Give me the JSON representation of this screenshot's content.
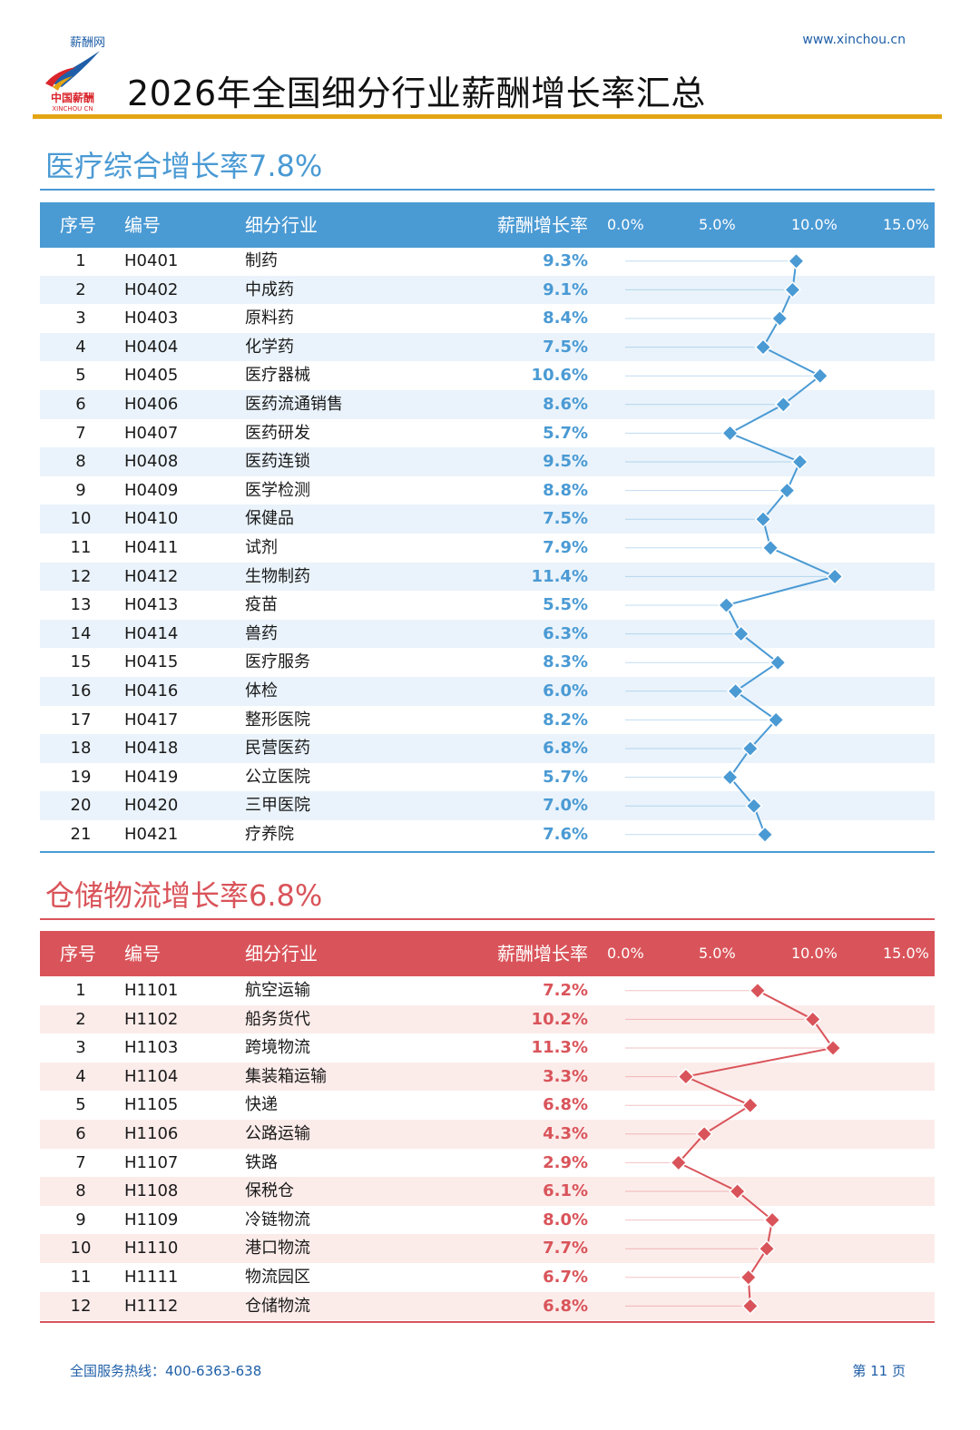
{
  "header": {
    "brand_small": "薪酬网",
    "site_url": "www.xinchou.cn",
    "logo_text_cn": "中国薪酬",
    "logo_text_en": "XINCHOU CN",
    "title": "2026年全国细分行业薪酬增长率汇总",
    "accent_color": "#e3a514"
  },
  "sections": [
    {
      "title": "医疗综合增长率7.8%",
      "color": "#4a9ad4",
      "row_alt_color": "#eaf3fb",
      "columns": [
        "序号",
        "编号",
        "细分行业",
        "薪酬增长率"
      ],
      "ticks": [
        "0.0%",
        "5.0%",
        "10.0%",
        "15.0%"
      ],
      "rows": [
        {
          "idx": "1",
          "code": "H0401",
          "name": "制药",
          "rate": "9.3%"
        },
        {
          "idx": "2",
          "code": "H0402",
          "name": "中成药",
          "rate": "9.1%"
        },
        {
          "idx": "3",
          "code": "H0403",
          "name": "原料药",
          "rate": "8.4%"
        },
        {
          "idx": "4",
          "code": "H0404",
          "name": "化学药",
          "rate": "7.5%"
        },
        {
          "idx": "5",
          "code": "H0405",
          "name": "医疗器械",
          "rate": "10.6%"
        },
        {
          "idx": "6",
          "code": "H0406",
          "name": "医药流通销售",
          "rate": "8.6%"
        },
        {
          "idx": "7",
          "code": "H0407",
          "name": "医药研发",
          "rate": "5.7%"
        },
        {
          "idx": "8",
          "code": "H0408",
          "name": "医药连锁",
          "rate": "9.5%"
        },
        {
          "idx": "9",
          "code": "H0409",
          "name": "医学检测",
          "rate": "8.8%"
        },
        {
          "idx": "10",
          "code": "H0410",
          "name": "保健品",
          "rate": "7.5%"
        },
        {
          "idx": "11",
          "code": "H0411",
          "name": "试剂",
          "rate": "7.9%"
        },
        {
          "idx": "12",
          "code": "H0412",
          "name": "生物制药",
          "rate": "11.4%"
        },
        {
          "idx": "13",
          "code": "H0413",
          "name": "疫苗",
          "rate": "5.5%"
        },
        {
          "idx": "14",
          "code": "H0414",
          "name": "兽药",
          "rate": "6.3%"
        },
        {
          "idx": "15",
          "code": "H0415",
          "name": "医疗服务",
          "rate": "8.3%"
        },
        {
          "idx": "16",
          "code": "H0416",
          "name": "体检",
          "rate": "6.0%"
        },
        {
          "idx": "17",
          "code": "H0417",
          "name": "整形医院",
          "rate": "8.2%"
        },
        {
          "idx": "18",
          "code": "H0418",
          "name": "民营医药",
          "rate": "6.8%"
        },
        {
          "idx": "19",
          "code": "H0419",
          "name": "公立医院",
          "rate": "5.7%"
        },
        {
          "idx": "20",
          "code": "H0420",
          "name": "三甲医院",
          "rate": "7.0%"
        },
        {
          "idx": "21",
          "code": "H0421",
          "name": "疗养院",
          "rate": "7.6%"
        }
      ]
    },
    {
      "title": "仓储物流增长率6.8%",
      "color": "#d9545a",
      "row_alt_color": "#fbecea",
      "columns": [
        "序号",
        "编号",
        "细分行业",
        "薪酬增长率"
      ],
      "ticks": [
        "0.0%",
        "5.0%",
        "10.0%",
        "15.0%"
      ],
      "rows": [
        {
          "idx": "1",
          "code": "H1101",
          "name": "航空运输",
          "rate": "7.2%"
        },
        {
          "idx": "2",
          "code": "H1102",
          "name": "船务货代",
          "rate": "10.2%"
        },
        {
          "idx": "3",
          "code": "H1103",
          "name": "跨境物流",
          "rate": "11.3%"
        },
        {
          "idx": "4",
          "code": "H1104",
          "name": "集装箱运输",
          "rate": "3.3%"
        },
        {
          "idx": "5",
          "code": "H1105",
          "name": "快递",
          "rate": "6.8%"
        },
        {
          "idx": "6",
          "code": "H1106",
          "name": "公路运输",
          "rate": "4.3%"
        },
        {
          "idx": "7",
          "code": "H1107",
          "name": "铁路",
          "rate": "2.9%"
        },
        {
          "idx": "8",
          "code": "H1108",
          "name": "保税仓",
          "rate": "6.1%"
        },
        {
          "idx": "9",
          "code": "H1109",
          "name": "冷链物流",
          "rate": "8.0%"
        },
        {
          "idx": "10",
          "code": "H1110",
          "name": "港口物流",
          "rate": "7.7%"
        },
        {
          "idx": "11",
          "code": "H1111",
          "name": "物流园区",
          "rate": "6.7%"
        },
        {
          "idx": "12",
          "code": "H1112",
          "name": "仓储物流",
          "rate": "6.8%"
        }
      ]
    }
  ],
  "chart_data": [
    {
      "type": "line",
      "x_axis_range": [
        0,
        15
      ],
      "orientation": "horizontal-values-per-row",
      "categories": [
        "制药",
        "中成药",
        "原料药",
        "化学药",
        "医疗器械",
        "医药流通销售",
        "医药研发",
        "医药连锁",
        "医学检测",
        "保健品",
        "试剂",
        "生物制药",
        "疫苗",
        "兽药",
        "医疗服务",
        "体检",
        "整形医院",
        "民营医药",
        "公立医院",
        "三甲医院",
        "疗养院"
      ],
      "values": [
        9.3,
        9.1,
        8.4,
        7.5,
        10.6,
        8.6,
        5.7,
        9.5,
        8.8,
        7.5,
        7.9,
        11.4,
        5.5,
        6.3,
        8.3,
        6.0,
        8.2,
        6.8,
        5.7,
        7.0,
        7.6
      ],
      "tick_labels": [
        "0.0%",
        "5.0%",
        "10.0%",
        "15.0%"
      ]
    },
    {
      "type": "line",
      "x_axis_range": [
        0,
        15
      ],
      "orientation": "horizontal-values-per-row",
      "categories": [
        "航空运输",
        "船务货代",
        "跨境物流",
        "集装箱运输",
        "快递",
        "公路运输",
        "铁路",
        "保税仓",
        "冷链物流",
        "港口物流",
        "物流园区",
        "仓储物流"
      ],
      "values": [
        7.2,
        10.2,
        11.3,
        3.3,
        6.8,
        4.3,
        2.9,
        6.1,
        8.0,
        7.7,
        6.7,
        6.8
      ],
      "tick_labels": [
        "0.0%",
        "5.0%",
        "10.0%",
        "15.0%"
      ]
    }
  ],
  "footer": {
    "hotline": "全国服务热线：400-6363-638",
    "page": "第 11 页"
  }
}
